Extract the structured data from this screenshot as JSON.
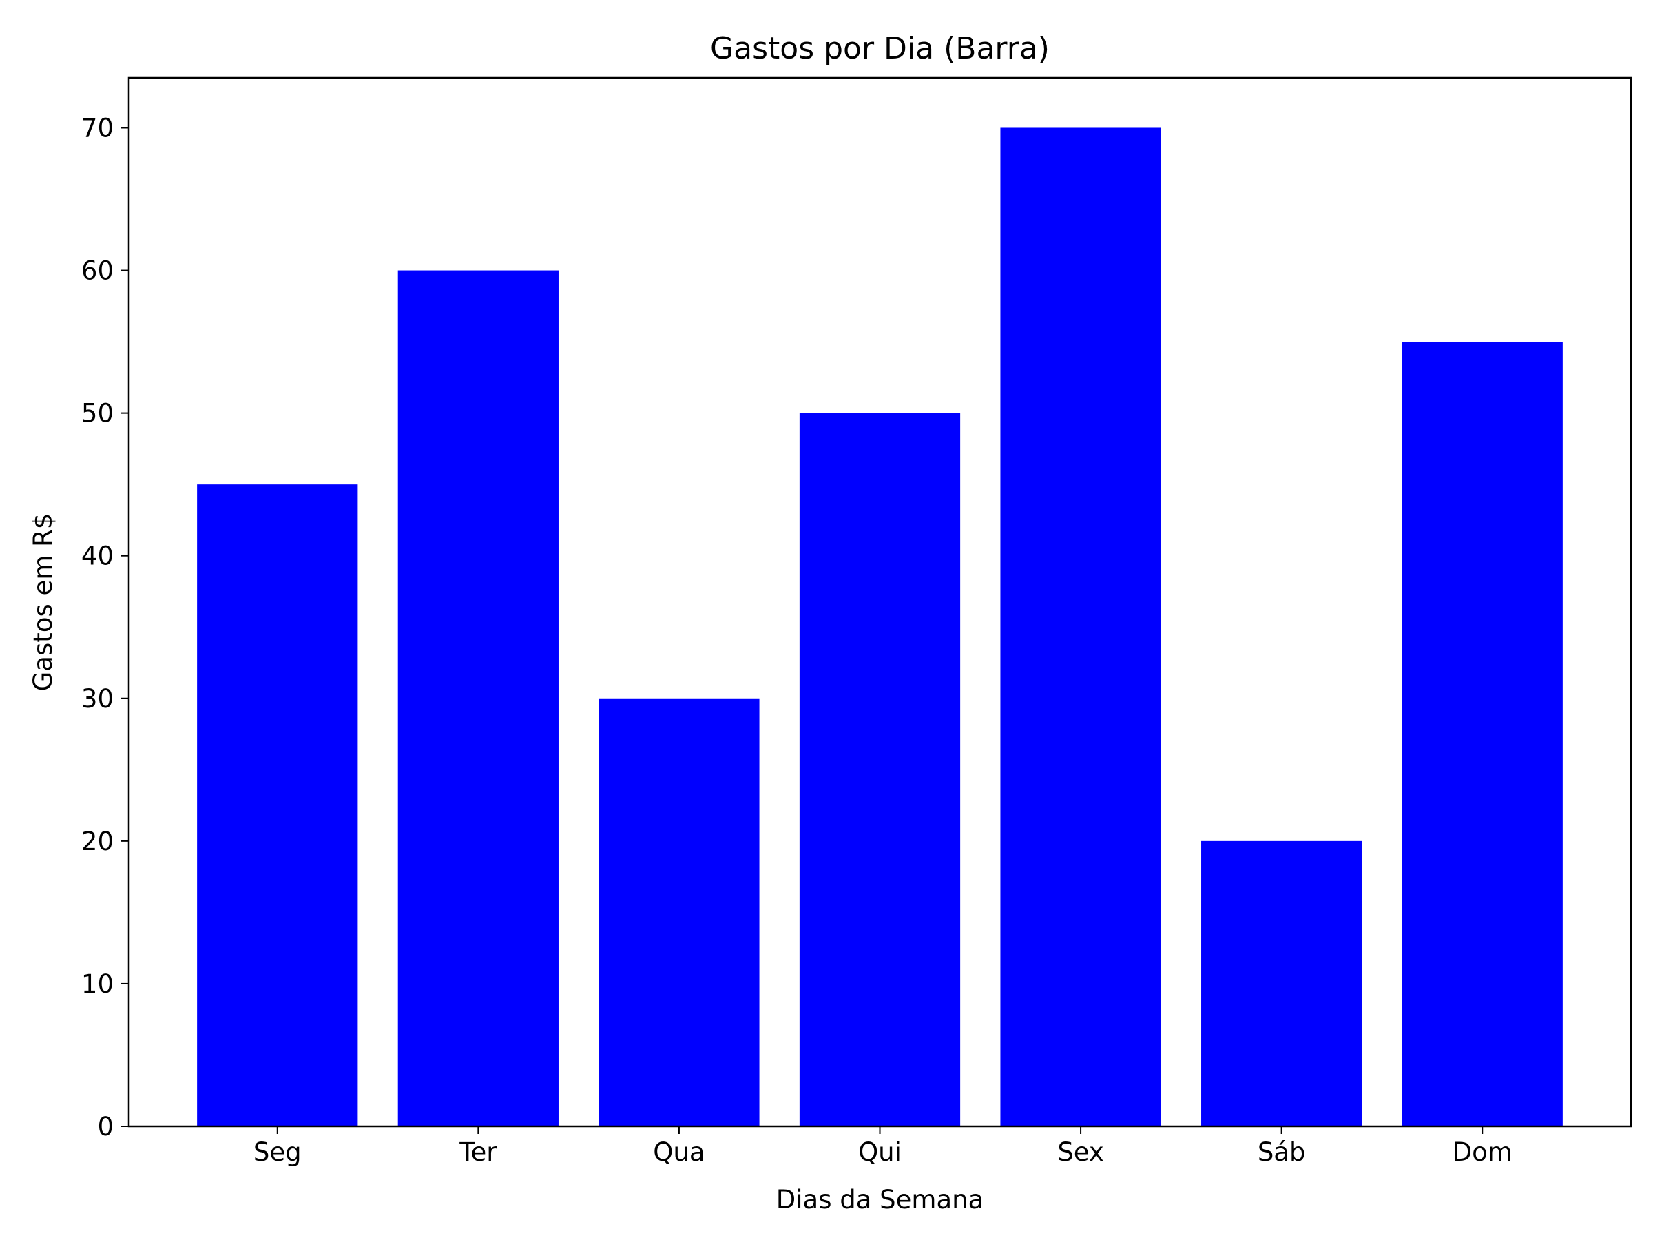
{
  "chart_data": {
    "type": "bar",
    "title": "Gastos por Dia (Barra)",
    "xlabel": "Dias da Semana",
    "ylabel": "Gastos em R$",
    "categories": [
      "Seg",
      "Ter",
      "Qua",
      "Qui",
      "Sex",
      "Sáb",
      "Dom"
    ],
    "values": [
      45,
      60,
      30,
      50,
      70,
      20,
      55
    ],
    "ylim": [
      0,
      73.5
    ],
    "yticks": [
      0,
      10,
      20,
      30,
      40,
      50,
      60,
      70
    ],
    "bar_color": "#0000ff",
    "grid": false,
    "legend": "none"
  }
}
